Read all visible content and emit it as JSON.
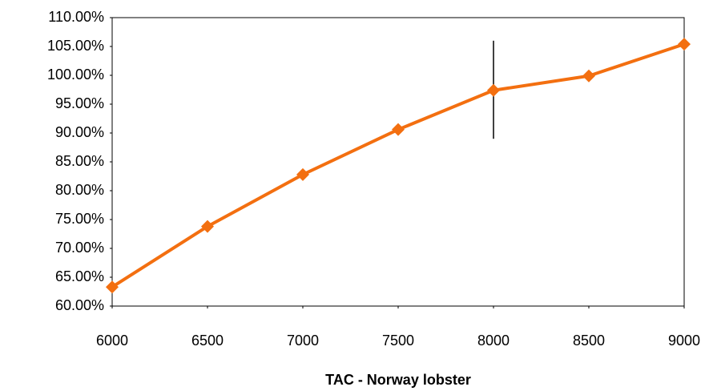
{
  "chart_data": {
    "type": "line",
    "xlabel": "TAC - Norway lobster",
    "x": [
      6000,
      6500,
      7000,
      7500,
      8000,
      8500,
      9000
    ],
    "series": [
      {
        "name": null,
        "color": "#f36f10",
        "values": [
          63.3,
          73.8,
          82.8,
          90.6,
          97.4,
          99.9,
          105.4
        ]
      }
    ],
    "xlim": [
      6000,
      9000
    ],
    "xticks": [
      6000,
      6500,
      7000,
      7500,
      8000,
      8500,
      9000
    ],
    "ylim": [
      60,
      110
    ],
    "yticks": [
      {
        "value": 60,
        "label": "60.00%"
      },
      {
        "value": 65,
        "label": "65.00%"
      },
      {
        "value": 70,
        "label": "70.00%"
      },
      {
        "value": 75,
        "label": "75.00%"
      },
      {
        "value": 80,
        "label": "80.00%"
      },
      {
        "value": 85,
        "label": "85.00%"
      },
      {
        "value": 90,
        "label": "90.00%"
      },
      {
        "value": 95,
        "label": "95.00%"
      },
      {
        "value": 100,
        "label": "100.00%"
      },
      {
        "value": 105,
        "label": "105.00%"
      },
      {
        "value": 110,
        "label": "110.00%"
      }
    ],
    "reference_line": {
      "x": 8000,
      "ymin": 89,
      "ymax": 106
    },
    "grid": false
  }
}
